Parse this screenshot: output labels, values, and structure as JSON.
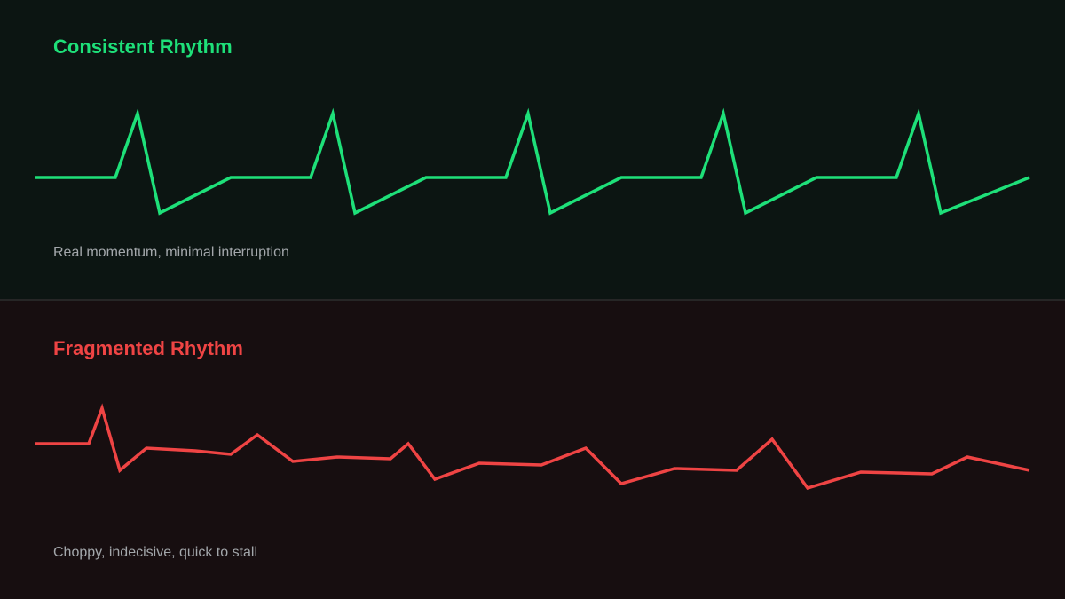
{
  "panels": [
    {
      "title": "Consistent Rhythm",
      "caption": "Real momentum, minimal interruption"
    },
    {
      "title": "Fragmented Rhythm",
      "caption": "Choppy, indecisive, quick to stall"
    }
  ]
}
